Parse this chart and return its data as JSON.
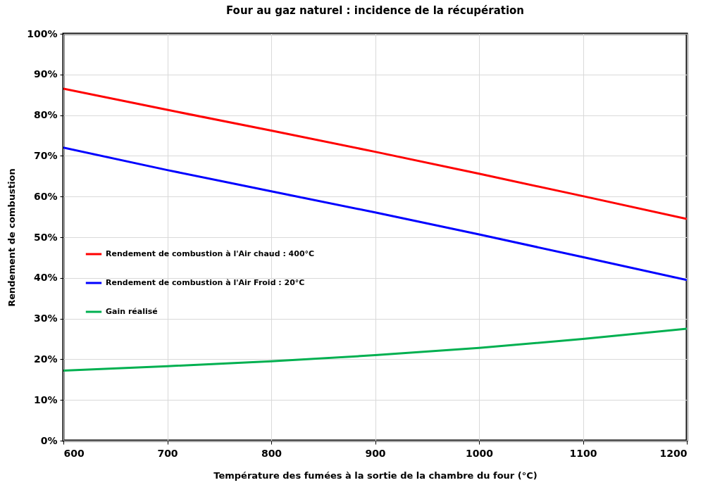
{
  "chart_data": {
    "type": "line",
    "title": "Four au gaz naturel : incidence de la récupération",
    "xlabel": "Température des fumées à la sortie de la chambre du four (°C)",
    "ylabel": "Rendement de combustion",
    "x": [
      600,
      700,
      800,
      900,
      1000,
      1100,
      1200
    ],
    "series": [
      {
        "name": "Rendement de combustion à l'Air chaud : 400°C",
        "color": "#ff0000",
        "values": [
          86.5,
          81.3,
          76.2,
          71,
          65.6,
          60.1,
          54.5
        ]
      },
      {
        "name": "Rendement de combustion à l'Air Froid : 20°C",
        "color": "#0000ff",
        "values": [
          72,
          66.5,
          61.3,
          56.1,
          50.7,
          45.1,
          39.5
        ]
      },
      {
        "name": "Gain réalisé",
        "color": "#00b050",
        "values": [
          17.2,
          18.3,
          19.5,
          21,
          22.8,
          25,
          27.5
        ]
      }
    ],
    "xlim": [
      600,
      1200
    ],
    "xticks": [
      600,
      700,
      800,
      900,
      1000,
      1100,
      1200
    ],
    "ylim": [
      0,
      100
    ],
    "yticks": [
      {
        "value": 0,
        "label": "0%"
      },
      {
        "value": 10,
        "label": "10%"
      },
      {
        "value": 20,
        "label": "20%"
      },
      {
        "value": 30,
        "label": "30%"
      },
      {
        "value": 40,
        "label": "40%"
      },
      {
        "value": 50,
        "label": "50%"
      },
      {
        "value": 60,
        "label": "60%"
      },
      {
        "value": 70,
        "label": "70%"
      },
      {
        "value": 80,
        "label": "80%"
      },
      {
        "value": 90,
        "label": "90%"
      },
      {
        "value": 100,
        "label": "100%"
      }
    ],
    "grid": true,
    "legend": "left",
    "marker": "none",
    "line_style": "solid"
  }
}
